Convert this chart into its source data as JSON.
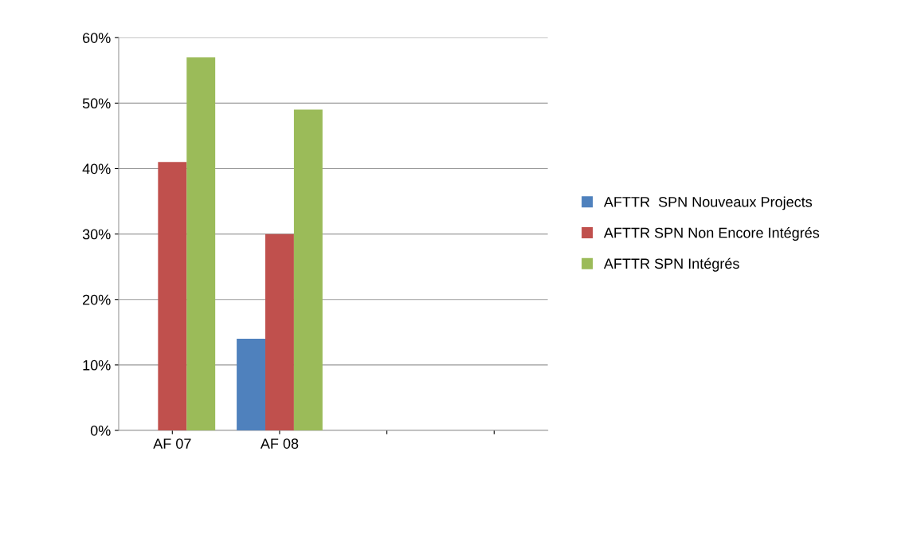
{
  "chart_data": {
    "type": "bar",
    "categories": [
      "AF 07",
      "AF 08",
      null,
      null
    ],
    "series": [
      {
        "name": "AFTTR  SPN Nouveaux Projects",
        "color": "#4f81bd",
        "values": [
          0,
          14,
          null,
          null
        ]
      },
      {
        "name": "AFTTR SPN Non Encore Intégrés",
        "color": "#c0504d",
        "values": [
          41,
          30,
          null,
          null
        ]
      },
      {
        "name": "AFTTR SPN Intégrés",
        "color": "#9bbb59",
        "values": [
          57,
          49,
          null,
          null
        ]
      }
    ],
    "ylim": [
      0,
      60
    ],
    "yticks": [
      {
        "value": 0,
        "label": "0%"
      },
      {
        "value": 10,
        "label": "10%"
      },
      {
        "value": 20,
        "label": "20%"
      },
      {
        "value": 30,
        "label": "30%"
      },
      {
        "value": 40,
        "label": "40%"
      },
      {
        "value": 50,
        "label": "50%"
      },
      {
        "value": 60,
        "label": "60%"
      }
    ],
    "grid": "y",
    "legend": "right"
  }
}
